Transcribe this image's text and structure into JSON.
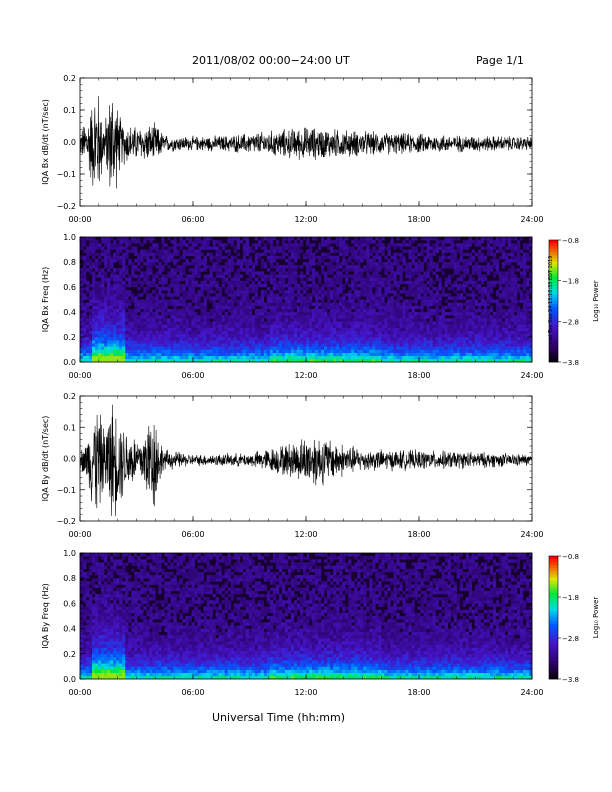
{
  "header": {
    "title": "2011/08/02  00:00−24:00 UT",
    "page": "Page 1/1"
  },
  "footer": {
    "xaxis_title": "Universal Time (hh:mm)",
    "stamp": "mol Tue Sep 24 13:16:33 EDT 2019"
  },
  "chart_data": [
    {
      "type": "line",
      "ylabel": "IQA Bx dB/dt (nT/sec)",
      "ylim": [
        -0.2,
        0.2
      ],
      "yticks": [
        "0.2",
        "0.1",
        "0.0",
        "−0.1",
        "−0.2"
      ],
      "xlim": [
        0,
        24
      ],
      "xticks": [
        "00:00",
        "06:00",
        "12:00",
        "18:00",
        "24:00"
      ],
      "envelope": [
        {
          "t": 0.0,
          "amp": 0.04
        },
        {
          "t": 0.5,
          "amp": 0.12
        },
        {
          "t": 0.9,
          "amp": 0.22
        },
        {
          "t": 1.3,
          "amp": 0.07
        },
        {
          "t": 1.7,
          "amp": 0.22
        },
        {
          "t": 2.2,
          "amp": 0.08
        },
        {
          "t": 3.0,
          "amp": 0.06
        },
        {
          "t": 4.0,
          "amp": 0.07
        },
        {
          "t": 4.5,
          "amp": 0.03
        },
        {
          "t": 6.0,
          "amp": 0.025
        },
        {
          "t": 8.0,
          "amp": 0.03
        },
        {
          "t": 10.0,
          "amp": 0.045
        },
        {
          "t": 12.0,
          "amp": 0.06
        },
        {
          "t": 14.0,
          "amp": 0.05
        },
        {
          "t": 16.0,
          "amp": 0.04
        },
        {
          "t": 18.0,
          "amp": 0.035
        },
        {
          "t": 20.0,
          "amp": 0.03
        },
        {
          "t": 24.0,
          "amp": 0.025
        }
      ]
    },
    {
      "type": "heatmap",
      "ylabel": "IQA Bx Freq (Hz)",
      "ylim": [
        0.0,
        1.0
      ],
      "yticks": [
        "1.0",
        "0.8",
        "0.6",
        "0.4",
        "0.2",
        "0.0"
      ],
      "xlim": [
        0,
        24
      ],
      "xticks": [
        "00:00",
        "06:00",
        "12:00",
        "18:00",
        "24:00"
      ],
      "colorbar": {
        "label": "Log₁₀ Power",
        "ticks": [
          "−0.8",
          "−1.8",
          "−2.8",
          "−3.8"
        ],
        "range": [
          -3.8,
          -0.8
        ]
      }
    },
    {
      "type": "line",
      "ylabel": "IQA By dB/dt (nT/sec)",
      "ylim": [
        -0.2,
        0.2
      ],
      "yticks": [
        "0.2",
        "0.1",
        "0.0",
        "−0.1",
        "−0.2"
      ],
      "xlim": [
        0,
        24
      ],
      "xticks": [
        "00:00",
        "06:00",
        "12:00",
        "18:00",
        "24:00"
      ],
      "envelope": [
        {
          "t": 0.0,
          "amp": 0.03
        },
        {
          "t": 0.4,
          "amp": 0.08
        },
        {
          "t": 0.8,
          "amp": 0.22
        },
        {
          "t": 1.3,
          "amp": 0.12
        },
        {
          "t": 1.7,
          "amp": 0.22
        },
        {
          "t": 2.4,
          "amp": 0.12
        },
        {
          "t": 3.2,
          "amp": 0.08
        },
        {
          "t": 3.9,
          "amp": 0.2
        },
        {
          "t": 4.4,
          "amp": 0.04
        },
        {
          "t": 6.0,
          "amp": 0.02
        },
        {
          "t": 9.0,
          "amp": 0.025
        },
        {
          "t": 11.0,
          "amp": 0.06
        },
        {
          "t": 12.5,
          "amp": 0.1
        },
        {
          "t": 13.5,
          "amp": 0.07
        },
        {
          "t": 15.0,
          "amp": 0.04
        },
        {
          "t": 18.0,
          "amp": 0.035
        },
        {
          "t": 21.0,
          "amp": 0.03
        },
        {
          "t": 24.0,
          "amp": 0.02
        }
      ]
    },
    {
      "type": "heatmap",
      "ylabel": "IQA By Freq (Hz)",
      "ylim": [
        0.0,
        1.0
      ],
      "yticks": [
        "1.0",
        "0.8",
        "0.6",
        "0.4",
        "0.2",
        "0.0"
      ],
      "xlim": [
        0,
        24
      ],
      "xticks": [
        "00:00",
        "06:00",
        "12:00",
        "18:00",
        "24:00"
      ],
      "colorbar": {
        "label": "Log₁₀ Power",
        "ticks": [
          "−0.8",
          "−1.8",
          "−2.8",
          "−3.8"
        ],
        "range": [
          -3.8,
          -0.8
        ]
      }
    }
  ]
}
